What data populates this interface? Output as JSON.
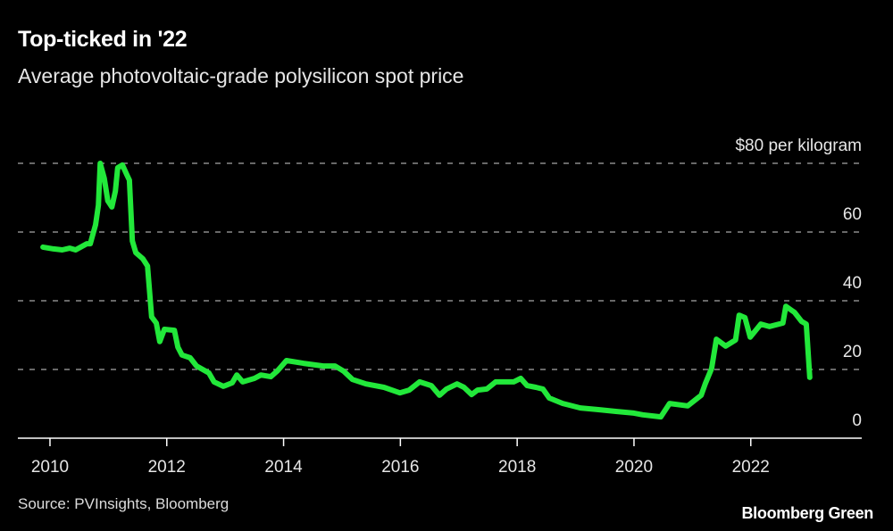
{
  "title": "Top-ticked in '22",
  "subtitle": "Average photovoltaic-grade polysilicon spot price",
  "source": "Source: PVInsights, Bloomberg",
  "logo": "Bloomberg Green",
  "colors": {
    "line": "#22e83a",
    "grid": "#8a8a8a",
    "axis": "#ffffff"
  },
  "chart_data": {
    "type": "line",
    "title": "Top-ticked in '22",
    "xlabel": "",
    "ylabel": "$ per kilogram",
    "xlim": [
      2009.45,
      2023.9
    ],
    "ylim": [
      0,
      80
    ],
    "grid": true,
    "x_ticks": [
      2010,
      2012,
      2014,
      2016,
      2018,
      2020,
      2022
    ],
    "x_tick_labels": [
      "2010",
      "2012",
      "2014",
      "2016",
      "2018",
      "2020",
      "2022"
    ],
    "y_ticks": [
      0,
      20,
      40,
      60,
      80
    ],
    "y_tick_labels": [
      "0",
      "20",
      "40",
      "60",
      "$80 per kilogram"
    ],
    "series": [
      {
        "name": "Polysilicon spot price",
        "points": [
          [
            2009.88,
            55.6
          ],
          [
            2010.06,
            55.1
          ],
          [
            2010.21,
            54.8
          ],
          [
            2010.34,
            55.3
          ],
          [
            2010.44,
            54.8
          ],
          [
            2010.63,
            56.6
          ],
          [
            2010.69,
            56.6
          ],
          [
            2010.78,
            62.1
          ],
          [
            2010.83,
            67.8
          ],
          [
            2010.86,
            80.0
          ],
          [
            2010.93,
            75.6
          ],
          [
            2010.99,
            69.1
          ],
          [
            2011.06,
            67.3
          ],
          [
            2011.12,
            71.9
          ],
          [
            2011.16,
            78.7
          ],
          [
            2011.24,
            79.5
          ],
          [
            2011.31,
            76.9
          ],
          [
            2011.36,
            75.1
          ],
          [
            2011.41,
            57.4
          ],
          [
            2011.47,
            54.0
          ],
          [
            2011.59,
            52.2
          ],
          [
            2011.67,
            50.1
          ],
          [
            2011.74,
            35.3
          ],
          [
            2011.82,
            33.5
          ],
          [
            2011.88,
            28.1
          ],
          [
            2011.96,
            31.7
          ],
          [
            2012.13,
            31.4
          ],
          [
            2012.19,
            26.5
          ],
          [
            2012.26,
            24.2
          ],
          [
            2012.4,
            23.4
          ],
          [
            2012.51,
            21.0
          ],
          [
            2012.72,
            19.0
          ],
          [
            2012.81,
            16.4
          ],
          [
            2012.97,
            15.1
          ],
          [
            2013.12,
            16.1
          ],
          [
            2013.2,
            18.4
          ],
          [
            2013.3,
            16.4
          ],
          [
            2013.5,
            17.4
          ],
          [
            2013.61,
            18.4
          ],
          [
            2013.78,
            17.9
          ],
          [
            2013.9,
            19.7
          ],
          [
            2014.05,
            22.6
          ],
          [
            2014.34,
            21.8
          ],
          [
            2014.68,
            21.0
          ],
          [
            2014.88,
            21.0
          ],
          [
            2015.03,
            19.5
          ],
          [
            2015.18,
            17.1
          ],
          [
            2015.41,
            15.8
          ],
          [
            2015.72,
            14.8
          ],
          [
            2015.99,
            13.2
          ],
          [
            2016.15,
            14.0
          ],
          [
            2016.33,
            16.4
          ],
          [
            2016.53,
            15.3
          ],
          [
            2016.67,
            12.5
          ],
          [
            2016.79,
            14.3
          ],
          [
            2016.97,
            15.8
          ],
          [
            2017.09,
            14.8
          ],
          [
            2017.22,
            12.7
          ],
          [
            2017.32,
            14.0
          ],
          [
            2017.48,
            14.3
          ],
          [
            2017.63,
            16.4
          ],
          [
            2017.94,
            16.4
          ],
          [
            2018.06,
            17.4
          ],
          [
            2018.17,
            15.3
          ],
          [
            2018.32,
            14.8
          ],
          [
            2018.44,
            14.3
          ],
          [
            2018.55,
            11.7
          ],
          [
            2018.78,
            10.1
          ],
          [
            2019.08,
            8.8
          ],
          [
            2019.39,
            8.3
          ],
          [
            2019.69,
            7.8
          ],
          [
            2020.0,
            7.3
          ],
          [
            2020.15,
            6.8
          ],
          [
            2020.46,
            6.2
          ],
          [
            2020.61,
            10.1
          ],
          [
            2020.92,
            9.4
          ],
          [
            2021.15,
            12.5
          ],
          [
            2021.22,
            15.8
          ],
          [
            2021.33,
            20.3
          ],
          [
            2021.41,
            28.8
          ],
          [
            2021.57,
            26.8
          ],
          [
            2021.74,
            28.6
          ],
          [
            2021.8,
            35.8
          ],
          [
            2021.9,
            35.1
          ],
          [
            2021.99,
            29.4
          ],
          [
            2022.17,
            33.2
          ],
          [
            2022.32,
            32.5
          ],
          [
            2022.55,
            33.5
          ],
          [
            2022.6,
            38.4
          ],
          [
            2022.75,
            36.6
          ],
          [
            2022.87,
            34.0
          ],
          [
            2022.95,
            33.2
          ],
          [
            2023.01,
            17.7
          ]
        ]
      }
    ]
  }
}
